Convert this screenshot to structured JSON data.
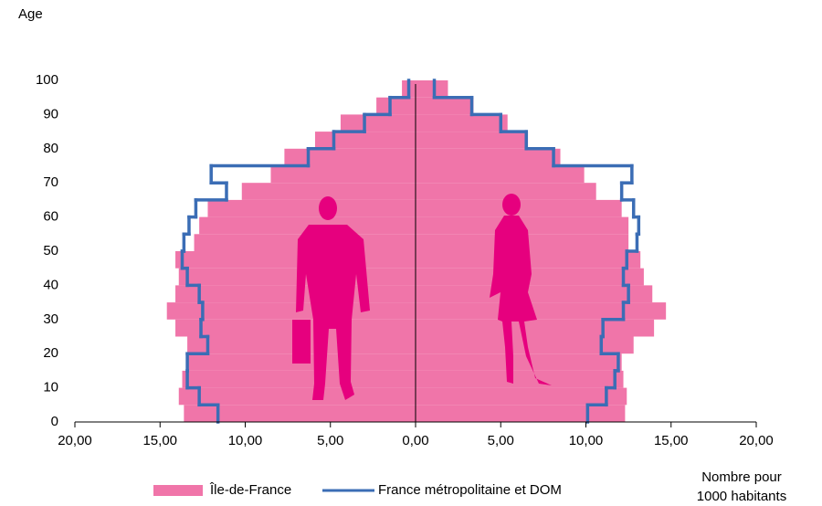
{
  "chart_data": {
    "type": "pyramid",
    "ylabel": "Age",
    "xlabel": [
      "Nombre pour",
      "1000 habitants"
    ],
    "bins": [
      0,
      5,
      10,
      15,
      20,
      25,
      30,
      35,
      40,
      45,
      50,
      55,
      60,
      65,
      70,
      75,
      80,
      85,
      90,
      95,
      100
    ],
    "series": [
      {
        "name": "Île-de-France",
        "kind": "bar",
        "color": "#f075a9",
        "left": [
          13.6,
          13.9,
          13.7,
          13.4,
          13.4,
          14.1,
          14.6,
          14.1,
          13.9,
          14.1,
          13.0,
          12.7,
          12.2,
          10.2,
          8.5,
          7.7,
          5.9,
          4.4,
          2.3,
          0.8
        ],
        "right": [
          12.3,
          12.4,
          12.2,
          12.1,
          12.8,
          14.0,
          14.7,
          13.9,
          13.4,
          13.2,
          12.5,
          12.5,
          12.1,
          10.6,
          9.9,
          8.5,
          6.6,
          5.4,
          3.4,
          1.9
        ]
      },
      {
        "name": "France métropolitaine et DOM",
        "kind": "step-line",
        "color": "#3b6db5",
        "left": [
          11.6,
          12.7,
          13.4,
          13.4,
          12.2,
          12.6,
          12.5,
          12.7,
          13.4,
          13.7,
          13.6,
          13.3,
          12.9,
          11.1,
          12.0,
          6.3,
          4.8,
          3.0,
          1.5,
          0.4
        ],
        "right": [
          10.1,
          11.2,
          11.7,
          11.9,
          10.9,
          11.0,
          12.2,
          12.5,
          12.2,
          12.4,
          13.0,
          13.1,
          12.8,
          12.1,
          12.7,
          8.1,
          6.5,
          5.0,
          3.3,
          1.1
        ]
      }
    ],
    "xlim": [
      -20,
      20
    ],
    "xticks": [
      {
        "value": -20,
        "label": "20,00"
      },
      {
        "value": -15,
        "label": "15,00"
      },
      {
        "value": -10,
        "label": "10,00"
      },
      {
        "value": -5,
        "label": "5,00"
      },
      {
        "value": 0,
        "label": "0,00"
      },
      {
        "value": 5,
        "label": "5,00"
      },
      {
        "value": 10,
        "label": "10,00"
      },
      {
        "value": 15,
        "label": "15,00"
      },
      {
        "value": 20,
        "label": "20,00"
      }
    ],
    "ylim": [
      0,
      100
    ],
    "yticks": [
      0,
      10,
      20,
      30,
      40,
      50,
      60,
      70,
      80,
      90,
      100
    ]
  }
}
